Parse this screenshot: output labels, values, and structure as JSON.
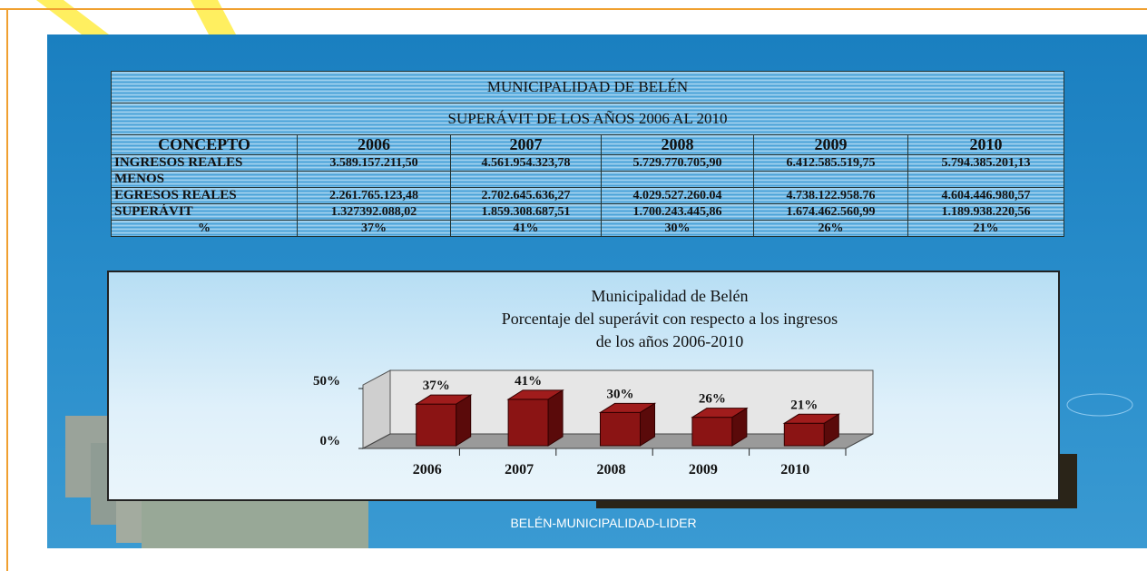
{
  "table": {
    "title": "MUNICIPALIDAD DE BELÉN",
    "subtitle": "SUPERÁVIT DE LOS AÑOS 2006 AL 2010",
    "header": [
      "CONCEPTO",
      "2006",
      "2007",
      "2008",
      "2009",
      "2010"
    ],
    "rows": [
      [
        "INGRESOS REALES",
        "3.589.157.211,50",
        "4.561.954.323,78",
        "5.729.770.705,90",
        "6.412.585.519,75",
        "5.794.385.201,13"
      ],
      [
        "MENOS",
        null,
        null,
        null,
        null,
        null
      ],
      [
        "EGRESOS REALES",
        "2.261.765.123,48",
        "2.702.645.636,27",
        "4.029.527.260.04",
        "4.738.122.958.76",
        "4.604.446.980,57"
      ],
      [
        "SUPERÁVIT",
        "1.327392.088,02",
        "1.859.308.687,51",
        "1.700.243.445,86",
        "1.674.462.560,99",
        "1.189.938.220,56"
      ],
      [
        "%",
        "37%",
        "41%",
        "30%",
        "26%",
        "21%"
      ]
    ]
  },
  "chart_data": {
    "type": "bar3d",
    "title": [
      "Municipalidad de Belén",
      "Porcentaje del superávit con respecto a los ingresos",
      "de los años 2006-2010"
    ],
    "categories": [
      "2006",
      "2007",
      "2008",
      "2009",
      "2010"
    ],
    "values": [
      37,
      41,
      30,
      26,
      21
    ],
    "value_labels": [
      "37%",
      "41%",
      "30%",
      "26%",
      "21%"
    ],
    "color": "#8b1414",
    "ylim": [
      0,
      50
    ],
    "yticks": [
      {
        "value": 0,
        "label": "0%"
      },
      {
        "value": 50,
        "label": "50%"
      }
    ]
  },
  "footer": "BELÉN-MUNICIPALIDAD-LIDER"
}
